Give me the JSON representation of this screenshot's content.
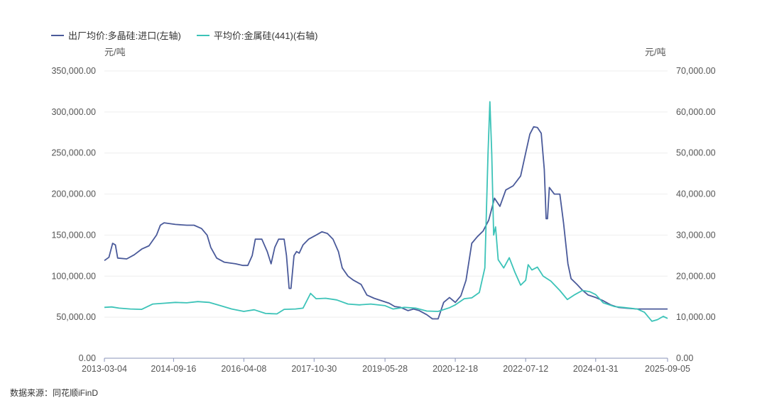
{
  "legend": {
    "series1": "出厂均价:多晶硅:进口(左轴)",
    "series2": "平均价:金属硅(441)(右轴)"
  },
  "units": {
    "left": "元/吨",
    "right": "元/吨"
  },
  "source": "数据来源：同花顺iFinD",
  "colors": {
    "series1": "#4a5a9a",
    "series2": "#3cc3b8",
    "axis": "#8a93b8",
    "grid": "#eeeeee"
  },
  "chart_data": {
    "type": "line",
    "x_ticks": [
      "2013-03-04",
      "2014-09-16",
      "2016-04-08",
      "2017-10-30",
      "2019-05-28",
      "2020-12-18",
      "2022-07-12",
      "2024-01-31",
      "2025-09-05"
    ],
    "y_left": {
      "range": [
        0,
        350000
      ],
      "ticks": [
        "0.00",
        "50,000.00",
        "100,000.00",
        "150,000.00",
        "200,000.00",
        "250,000.00",
        "300,000.00",
        "350,000.00"
      ]
    },
    "y_right": {
      "range": [
        0,
        70000
      ],
      "ticks": [
        "0.00",
        "10,000.00",
        "20,000.00",
        "30,000.00",
        "40,000.00",
        "50,000.00",
        "60,000.00",
        "70,000.00"
      ]
    },
    "series": [
      {
        "name": "出厂均价:多晶硅:进口(左轴)",
        "axis": "left",
        "points": [
          [
            "2013-03-04",
            119000
          ],
          [
            "2013-04-10",
            123000
          ],
          [
            "2013-05-10",
            140000
          ],
          [
            "2013-06-01",
            138000
          ],
          [
            "2013-06-20",
            122000
          ],
          [
            "2013-09-01",
            121000
          ],
          [
            "2013-11-01",
            126000
          ],
          [
            "2014-01-01",
            133000
          ],
          [
            "2014-03-01",
            137000
          ],
          [
            "2014-05-01",
            150000
          ],
          [
            "2014-06-01",
            162000
          ],
          [
            "2014-07-01",
            165000
          ],
          [
            "2014-10-01",
            163000
          ],
          [
            "2015-01-01",
            162000
          ],
          [
            "2015-03-01",
            162000
          ],
          [
            "2015-05-01",
            158000
          ],
          [
            "2015-06-15",
            150000
          ],
          [
            "2015-07-15",
            135000
          ],
          [
            "2015-09-01",
            122000
          ],
          [
            "2015-11-01",
            117000
          ],
          [
            "2016-02-01",
            115000
          ],
          [
            "2016-04-01",
            113000
          ],
          [
            "2016-05-10",
            113000
          ],
          [
            "2016-06-15",
            125000
          ],
          [
            "2016-07-10",
            145000
          ],
          [
            "2016-09-01",
            145000
          ],
          [
            "2016-10-15",
            130000
          ],
          [
            "2016-11-15",
            115000
          ],
          [
            "2016-12-15",
            135000
          ],
          [
            "2017-01-15",
            145000
          ],
          [
            "2017-03-01",
            145000
          ],
          [
            "2017-03-20",
            125000
          ],
          [
            "2017-04-10",
            85000
          ],
          [
            "2017-04-25",
            85000
          ],
          [
            "2017-05-20",
            125000
          ],
          [
            "2017-06-10",
            130000
          ],
          [
            "2017-07-01",
            128000
          ],
          [
            "2017-08-01",
            138000
          ],
          [
            "2017-09-15",
            145000
          ],
          [
            "2017-11-15",
            150000
          ],
          [
            "2018-01-01",
            154000
          ],
          [
            "2018-02-15",
            152000
          ],
          [
            "2018-04-01",
            145000
          ],
          [
            "2018-05-15",
            130000
          ],
          [
            "2018-06-15",
            110000
          ],
          [
            "2018-08-01",
            100000
          ],
          [
            "2018-09-15",
            95000
          ],
          [
            "2018-11-15",
            90000
          ],
          [
            "2019-01-01",
            77000
          ],
          [
            "2019-03-01",
            73000
          ],
          [
            "2019-05-01",
            70000
          ],
          [
            "2019-07-01",
            67000
          ],
          [
            "2019-08-15",
            63000
          ],
          [
            "2019-10-01",
            62000
          ],
          [
            "2019-12-01",
            58000
          ],
          [
            "2020-01-15",
            60000
          ],
          [
            "2020-03-01",
            58000
          ],
          [
            "2020-05-01",
            53000
          ],
          [
            "2020-06-15",
            48000
          ],
          [
            "2020-08-01",
            48000
          ],
          [
            "2020-09-15",
            68000
          ],
          [
            "2020-11-01",
            74000
          ],
          [
            "2020-12-18",
            68000
          ],
          [
            "2021-02-01",
            76000
          ],
          [
            "2021-03-15",
            95000
          ],
          [
            "2021-05-01",
            140000
          ],
          [
            "2021-06-15",
            148000
          ],
          [
            "2021-08-01",
            155000
          ],
          [
            "2021-09-15",
            168000
          ],
          [
            "2021-11-01",
            195000
          ],
          [
            "2021-12-15",
            185000
          ],
          [
            "2022-02-01",
            205000
          ],
          [
            "2022-04-01",
            210000
          ],
          [
            "2022-06-01",
            222000
          ],
          [
            "2022-07-12",
            250000
          ],
          [
            "2022-08-15",
            273000
          ],
          [
            "2022-09-15",
            282000
          ],
          [
            "2022-10-15",
            281000
          ],
          [
            "2022-11-15",
            274000
          ],
          [
            "2022-12-10",
            230000
          ],
          [
            "2022-12-25",
            170000
          ],
          [
            "2023-01-05",
            170000
          ],
          [
            "2023-01-20",
            208000
          ],
          [
            "2023-03-01",
            200000
          ],
          [
            "2023-04-15",
            200000
          ],
          [
            "2023-05-15",
            165000
          ],
          [
            "2023-06-20",
            115000
          ],
          [
            "2023-07-15",
            97000
          ],
          [
            "2023-09-01",
            90000
          ],
          [
            "2023-10-15",
            83000
          ],
          [
            "2023-12-01",
            77000
          ],
          [
            "2024-01-31",
            74000
          ],
          [
            "2024-04-01",
            70000
          ],
          [
            "2024-06-01",
            65000
          ],
          [
            "2024-08-01",
            62000
          ],
          [
            "2024-10-01",
            61000
          ],
          [
            "2025-01-01",
            60000
          ],
          [
            "2025-04-01",
            60000
          ],
          [
            "2025-09-05",
            60000
          ]
        ]
      },
      {
        "name": "平均价:金属硅(441)(右轴)",
        "axis": "right",
        "points": [
          [
            "2013-03-04",
            12400
          ],
          [
            "2013-05-01",
            12500
          ],
          [
            "2013-07-01",
            12200
          ],
          [
            "2013-10-01",
            12000
          ],
          [
            "2014-01-01",
            11900
          ],
          [
            "2014-04-01",
            13200
          ],
          [
            "2014-07-01",
            13400
          ],
          [
            "2014-10-01",
            13600
          ],
          [
            "2015-01-01",
            13500
          ],
          [
            "2015-04-01",
            13800
          ],
          [
            "2015-07-01",
            13600
          ],
          [
            "2015-10-01",
            12800
          ],
          [
            "2016-01-01",
            12000
          ],
          [
            "2016-04-08",
            11400
          ],
          [
            "2016-07-01",
            11800
          ],
          [
            "2016-10-01",
            10900
          ],
          [
            "2017-01-01",
            10800
          ],
          [
            "2017-03-01",
            11900
          ],
          [
            "2017-06-01",
            12000
          ],
          [
            "2017-08-01",
            12200
          ],
          [
            "2017-10-01",
            15800
          ],
          [
            "2017-11-15",
            14500
          ],
          [
            "2018-02-01",
            14600
          ],
          [
            "2018-05-01",
            14200
          ],
          [
            "2018-08-01",
            13200
          ],
          [
            "2018-11-01",
            13000
          ],
          [
            "2019-02-01",
            13200
          ],
          [
            "2019-05-28",
            12800
          ],
          [
            "2019-08-01",
            12000
          ],
          [
            "2019-11-01",
            12400
          ],
          [
            "2020-02-01",
            12200
          ],
          [
            "2020-05-01",
            11500
          ],
          [
            "2020-08-01",
            11400
          ],
          [
            "2020-11-01",
            12300
          ],
          [
            "2020-12-18",
            13000
          ],
          [
            "2021-03-01",
            14500
          ],
          [
            "2021-05-01",
            14700
          ],
          [
            "2021-07-01",
            16000
          ],
          [
            "2021-08-15",
            22000
          ],
          [
            "2021-09-10",
            50000
          ],
          [
            "2021-09-25",
            62500
          ],
          [
            "2021-10-10",
            50000
          ],
          [
            "2021-10-25",
            30000
          ],
          [
            "2021-11-10",
            32000
          ],
          [
            "2021-12-01",
            24000
          ],
          [
            "2022-01-15",
            22000
          ],
          [
            "2022-03-01",
            24500
          ],
          [
            "2022-04-15",
            21000
          ],
          [
            "2022-06-01",
            17800
          ],
          [
            "2022-07-12",
            19000
          ],
          [
            "2022-08-01",
            22800
          ],
          [
            "2022-09-01",
            21500
          ],
          [
            "2022-10-15",
            22200
          ],
          [
            "2022-12-01",
            20000
          ],
          [
            "2023-02-01",
            18800
          ],
          [
            "2023-04-15",
            16500
          ],
          [
            "2023-06-15",
            14300
          ],
          [
            "2023-08-15",
            15500
          ],
          [
            "2023-10-15",
            16500
          ],
          [
            "2023-12-15",
            16200
          ],
          [
            "2024-01-31",
            15500
          ],
          [
            "2024-04-01",
            13500
          ],
          [
            "2024-07-01",
            12600
          ],
          [
            "2024-10-01",
            12300
          ],
          [
            "2025-01-01",
            12000
          ],
          [
            "2025-03-01",
            11200
          ],
          [
            "2025-05-01",
            9000
          ],
          [
            "2025-06-15",
            9400
          ],
          [
            "2025-08-01",
            10200
          ],
          [
            "2025-09-05",
            9700
          ]
        ]
      }
    ]
  }
}
